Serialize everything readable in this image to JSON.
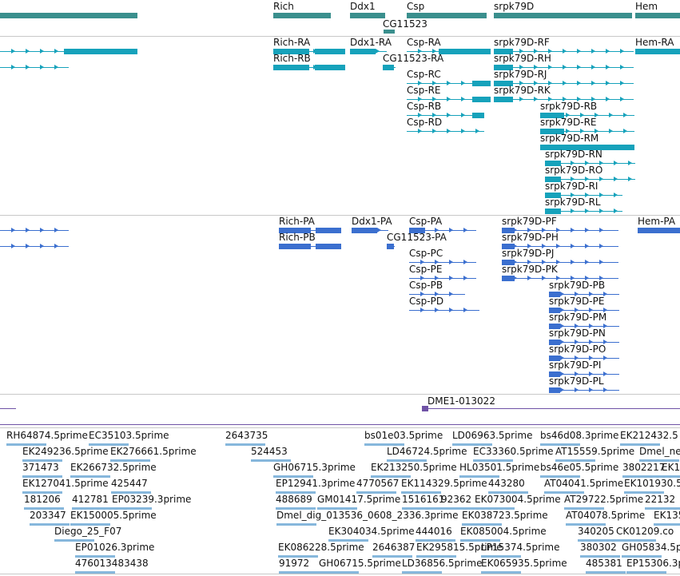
{
  "colors": {
    "gene": "#3a8f8d",
    "transcript": "#16a2bb",
    "protein": "#3b6fcf",
    "repeat": "#6f52a6",
    "est": "#86b7dc"
  },
  "genes": [
    "Rich",
    "Ddx1",
    "Csp",
    "srpk79D",
    "Hem",
    "CG11523"
  ],
  "transcripts": [
    "Rich-RA",
    "Rich-RB",
    "Ddx1-RA",
    "CG11523-RA",
    "Csp-RA",
    "Csp-RC",
    "Csp-RE",
    "Csp-RB",
    "Csp-RD",
    "srpk79D-RF",
    "srpk79D-RH",
    "srpk79D-RJ",
    "srpk79D-RK",
    "srpk79D-RB",
    "srpk79D-RE",
    "srpk79D-RM",
    "srpk79D-RN",
    "srpk79D-RO",
    "srpk79D-RI",
    "srpk79D-RL",
    "Hem-RA"
  ],
  "proteins": [
    "Rich-PA",
    "Rich-PB",
    "Ddx1-PA",
    "CG11523-PA",
    "Csp-PA",
    "Csp-PC",
    "Csp-PE",
    "Csp-PB",
    "Csp-PD",
    "srpk79D-PF",
    "srpk79D-PH",
    "srpk79D-PJ",
    "srpk79D-PK",
    "srpk79D-PB",
    "srpk79D-PE",
    "srpk79D-PM",
    "srpk79D-PN",
    "srpk79D-PO",
    "srpk79D-PI",
    "srpk79D-PL",
    "Hem-PA"
  ],
  "repeat": "DME1-013022",
  "ests": [
    "RH64874.5prime",
    "EC35103.5prime",
    "2643735",
    "bs01e03.5prime",
    "LD06963.5prime",
    "bs46d08.3prime",
    "EK212432.5",
    "EK249236.5prime",
    "EK276661.5prime",
    "524453",
    "LD46724.5prime",
    "EC33360.5prime",
    "AT15559.5prime",
    "Dmel_ne",
    "371473",
    "EK266732.5prime",
    "GH06715.3prime",
    "EK213250.5prime",
    "HL03501.5prime",
    "bs46e05.5prime",
    "3802217",
    "EK1",
    "EK127041.5prime",
    "425447",
    "EP12941.3prime",
    "4770567",
    "EK114329.5prime",
    "443280",
    "AT04041.5prime",
    "EK101930.5",
    "181206",
    "412781",
    "EP03239.3prime",
    "488689",
    "GM01417.5prime",
    "1516161",
    "92362",
    "EK073004.5prime",
    "AT29722.5prime",
    "22132",
    "203347",
    "EK150005.5prime",
    "Dmel_dig_013536_0608_2336.3prime",
    "EK038723.5prime",
    "AT04078.5prime",
    "EK135",
    "Diego_25_F07",
    "EK304034.5prime",
    "444016",
    "EK085004.5prime",
    "340205",
    "CK01209.co",
    "EP01026.3prime",
    "EK086228.5prime",
    "2646387",
    "EK295815.5prime",
    "LP15374.5prime",
    "380302",
    "GH05834.5p",
    "476013483438",
    "91972",
    "GH06715.5prime",
    "LD36856.5prime",
    "EK065935.5prime",
    "485381",
    "EP15306.3p"
  ]
}
